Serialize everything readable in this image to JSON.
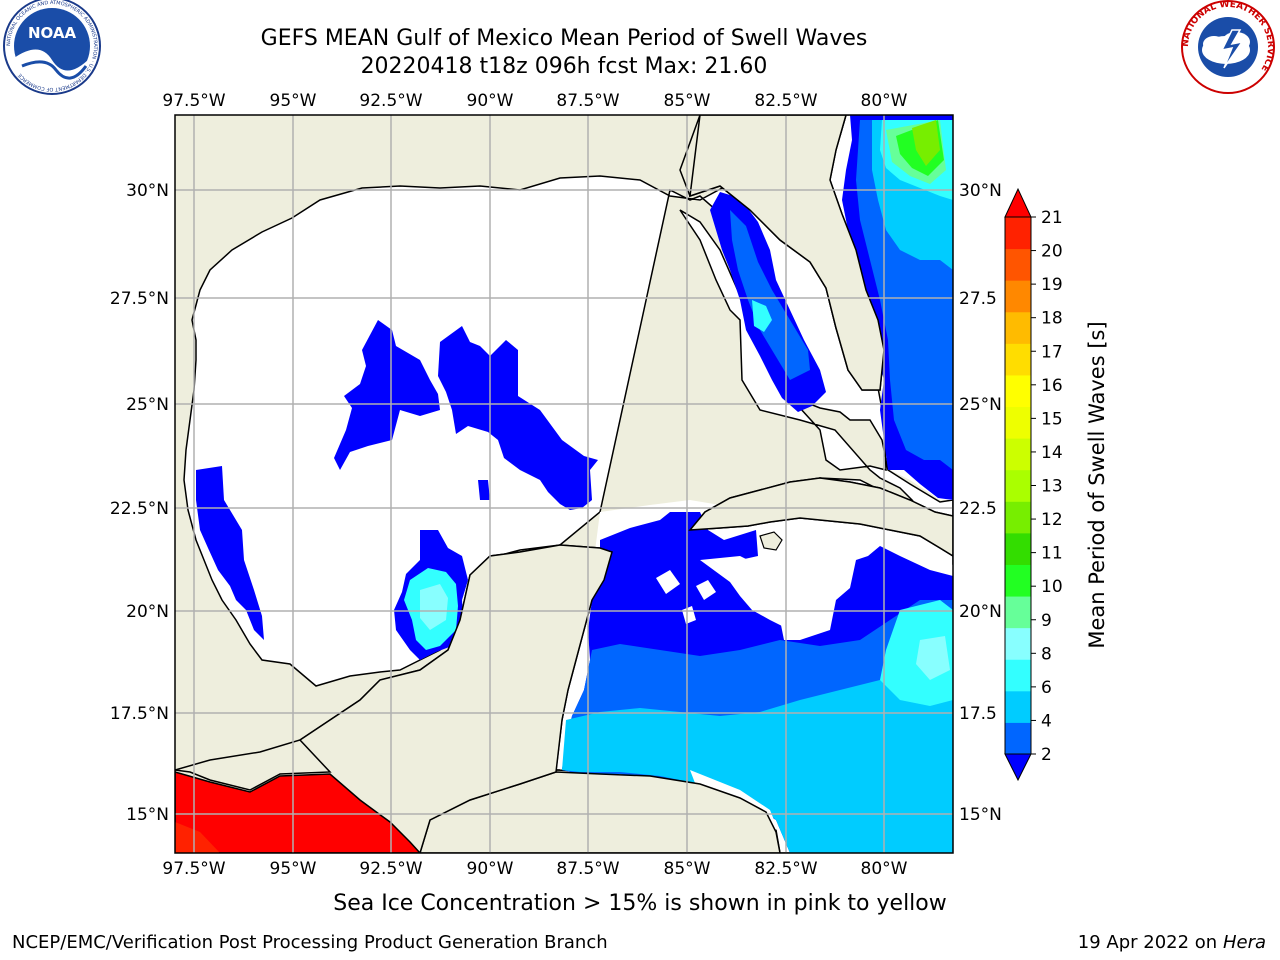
{
  "header": {
    "title_line1": "GEFS MEAN Gulf of Mexico Mean Period of Swell Waves",
    "title_line2": "20220418 t18z 096h fcst   Max: 21.60"
  },
  "logos": {
    "noaa_text": "NOAA",
    "noaa_ring_text": "NATIONAL OCEANIC AND ATMOSPHERIC ADMINISTRATION · U.S. DEPARTMENT OF COMMERCE",
    "nws_ring_text": "NATIONAL WEATHER SERVICE"
  },
  "axes": {
    "lon_labels": [
      "97.5°W",
      "95°W",
      "92.5°W",
      "90°W",
      "87.5°W",
      "85°W",
      "82.5°W",
      "80°W"
    ],
    "lat_labels_left": [
      "30°N",
      "27.5°N",
      "25°N",
      "22.5°N",
      "20°N",
      "17.5°N",
      "15°N"
    ],
    "lat_labels_right": [
      "30°N",
      "27.5",
      "25°N",
      "22.5",
      "20°N",
      "17.5",
      "15°N"
    ]
  },
  "colorbar": {
    "label": "Mean Period of Swell Waves [s]",
    "ticks": [
      "2",
      "4",
      "6",
      "8",
      "9",
      "10",
      "11",
      "12",
      "13",
      "14",
      "15",
      "16",
      "17",
      "18",
      "19",
      "20",
      "21"
    ],
    "colors": [
      "#0000ff",
      "#0066ff",
      "#00ccff",
      "#33ffff",
      "#88ffff",
      "#66ff99",
      "#22ff22",
      "#33dd00",
      "#77ee00",
      "#aaff00",
      "#ccff00",
      "#eeff00",
      "#ffff00",
      "#ffdd00",
      "#ffbb00",
      "#ff8800",
      "#ff5500",
      "#ff2200",
      "#ff0000"
    ]
  },
  "footer": {
    "subtitle": "Sea Ice Concentration > 15% is shown in pink to yellow",
    "credit_left": "NCEP/EMC/Verification Post Processing Product Generation Branch",
    "credit_date": "19 Apr 2022 on ",
    "credit_machine": "Hera"
  }
}
